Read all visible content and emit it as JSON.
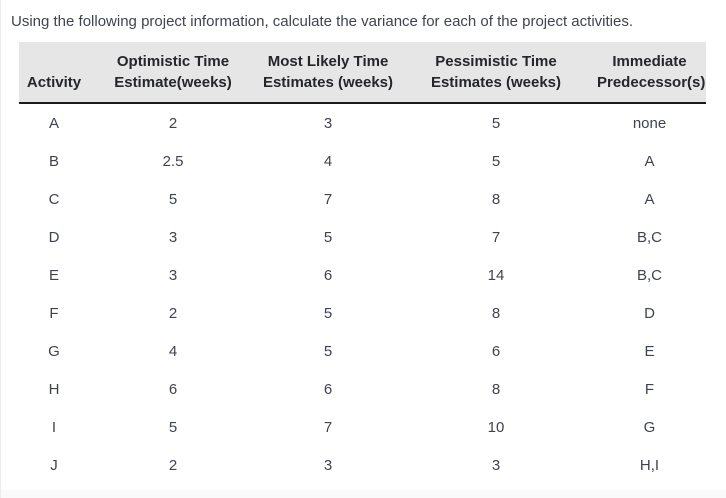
{
  "title": "Using the following project information, calculate the variance for each of the project activities.",
  "table": {
    "columns": [
      {
        "line1": "",
        "line2": "Activity"
      },
      {
        "line1": "Optimistic Time",
        "line2": "Estimate(weeks)"
      },
      {
        "line1": "Most Likely Time",
        "line2": "Estimates (weeks)"
      },
      {
        "line1": "Pessimistic Time",
        "line2": "Estimates (weeks)"
      },
      {
        "line1": "Immediate",
        "line2": "Predecessor(s)"
      }
    ],
    "rows": [
      [
        "A",
        "2",
        "3",
        "5",
        "none"
      ],
      [
        "B",
        "2.5",
        "4",
        "5",
        "A"
      ],
      [
        "C",
        "5",
        "7",
        "8",
        "A"
      ],
      [
        "D",
        "3",
        "5",
        "7",
        "B,C"
      ],
      [
        "E",
        "3",
        "6",
        "14",
        "B,C"
      ],
      [
        "F",
        "2",
        "5",
        "8",
        "D"
      ],
      [
        "G",
        "4",
        "5",
        "6",
        "E"
      ],
      [
        "H",
        "6",
        "6",
        "8",
        "F"
      ],
      [
        "I",
        "5",
        "7",
        "10",
        "G"
      ],
      [
        "J",
        "2",
        "3",
        "3",
        "H,I"
      ]
    ]
  },
  "colors": {
    "header_bg": "#e6e6e6",
    "header_border": "#1b1b1b",
    "header_text": "#24262b",
    "body_text": "#3f4350",
    "title_text": "#40444f"
  }
}
